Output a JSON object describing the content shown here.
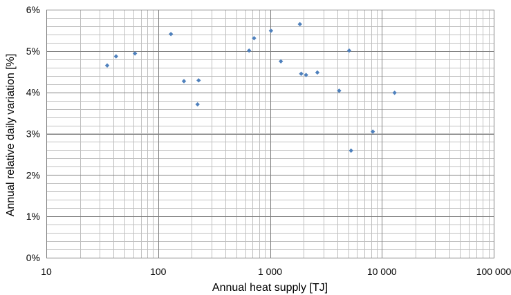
{
  "chart_data": {
    "type": "scatter",
    "title": "",
    "xlabel": "Annual heat supply [TJ]",
    "ylabel": "Annual relative  daily variation [%]",
    "x_scale": "log",
    "xlim": [
      10,
      100000
    ],
    "ylim": [
      0,
      6
    ],
    "grid": true,
    "x_tick_values": [
      10,
      100,
      1000,
      10000,
      100000
    ],
    "x_tick_labels": [
      "10",
      "100",
      "1 000",
      "10 000",
      "100 000"
    ],
    "y_tick_values": [
      0,
      1,
      2,
      3,
      4,
      5,
      6
    ],
    "y_tick_labels": [
      "0%",
      "1%",
      "2%",
      "3%",
      "4%",
      "5%",
      "6%"
    ],
    "marker_color": "#4f81bd",
    "series": [
      {
        "points": [
          [
            35,
            4.65
          ],
          [
            42,
            4.87
          ],
          [
            62,
            4.94
          ],
          [
            130,
            5.41
          ],
          [
            170,
            4.27
          ],
          [
            225,
            3.71
          ],
          [
            230,
            4.29
          ],
          [
            650,
            5.01
          ],
          [
            720,
            5.31
          ],
          [
            1020,
            5.49
          ],
          [
            1250,
            4.75
          ],
          [
            1850,
            5.65
          ],
          [
            1900,
            4.45
          ],
          [
            2100,
            4.42
          ],
          [
            2650,
            4.48
          ],
          [
            4150,
            4.04
          ],
          [
            5100,
            5.01
          ],
          [
            5300,
            2.59
          ],
          [
            8300,
            3.05
          ],
          [
            13000,
            3.99
          ]
        ]
      }
    ]
  }
}
